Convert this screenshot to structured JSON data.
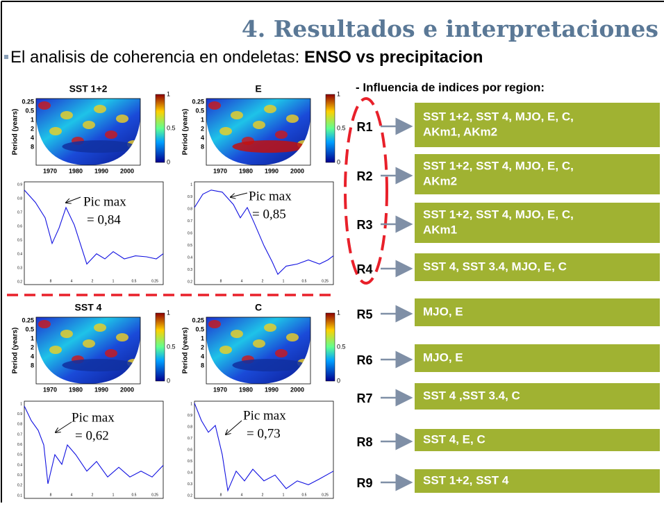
{
  "title": "4. Resultados e interpretaciones",
  "subtitle": {
    "text": "El analisis de coherencia en ondeletas: ",
    "bold": "ENSO vs precipitacion"
  },
  "wavelet_axes": {
    "ylabel": "Period (years)",
    "yticks": [
      "0.25",
      "0.5",
      "1",
      "2",
      "4",
      "8"
    ],
    "xticks": [
      "1970",
      "1980",
      "1990",
      "2000"
    ],
    "colorbar_ticks": [
      "1",
      "0.5",
      "0"
    ]
  },
  "line_axes": {
    "xticks": [
      "8",
      "4",
      "2",
      "1",
      "0.5",
      "0.25"
    ]
  },
  "panels": [
    {
      "title": "SST 1+2",
      "pic_label": "Pic max",
      "pic_value": "= 0,84",
      "yticks": [
        "0.9",
        "0.8",
        "0.7",
        "0.6",
        "0.5",
        "0.4",
        "0.3",
        "0.2"
      ]
    },
    {
      "title": "E",
      "pic_label": "Pic max",
      "pic_value": "= 0,85",
      "yticks": [
        "1",
        "0.9",
        "0.8",
        "0.7",
        "0.6",
        "0.5",
        "0.4",
        "0.3",
        "0.2"
      ]
    },
    {
      "title": "SST 4",
      "pic_label": "Pic max",
      "pic_value": "= 0,62",
      "yticks": [
        "1",
        "0.9",
        "0.8",
        "0.7",
        "0.6",
        "0.5",
        "0.4",
        "0.3",
        "0.2",
        "0.1"
      ]
    },
    {
      "title": "C",
      "pic_label": "Pic max",
      "pic_value": "= 0,73",
      "yticks": [
        "1",
        "0.9",
        "0.8",
        "0.7",
        "0.6",
        "0.5",
        "0.4",
        "0.3",
        "0.2"
      ]
    }
  ],
  "region_heading": "- Influencia de indices por region:",
  "regions": [
    {
      "label": "R1",
      "indices": [
        "SST 1+2, SST 4, MJO, E, C,",
        "AKm1, AKm2"
      ]
    },
    {
      "label": "R2",
      "indices": [
        "SST 1+2, SST 4, MJO, E, C,",
        "AKm2"
      ]
    },
    {
      "label": "R3",
      "indices": [
        "SST 1+2, SST 4, MJO, E, C,",
        "AKm1"
      ]
    },
    {
      "label": "R4",
      "indices": [
        "SST 4, SST 3.4, MJO, E, C"
      ]
    },
    {
      "label": "R5",
      "indices": [
        "MJO, E"
      ]
    },
    {
      "label": "R6",
      "indices": [
        "MJO, E"
      ]
    },
    {
      "label": "R7",
      "indices": [
        "SST 4 ,SST 3.4, C"
      ]
    },
    {
      "label": "R8",
      "indices": [
        "SST 4, E, C"
      ]
    },
    {
      "label": "R9",
      "indices": [
        "SST 1+2, SST 4"
      ]
    }
  ]
}
